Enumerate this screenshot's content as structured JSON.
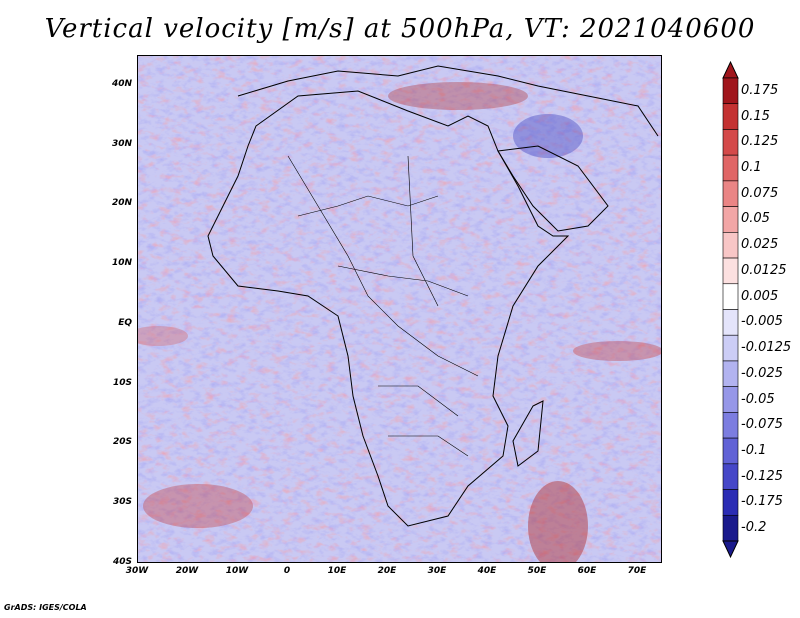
{
  "title": "Vertical velocity [m/s] at 500hPa, VT: 2021040600",
  "credit": "GrADS: IGES/COLA",
  "map": {
    "lon_range": [
      -30,
      75
    ],
    "lat_range": [
      -40,
      45
    ],
    "lat_labels": [
      "40N",
      "30N",
      "20N",
      "10N",
      "EQ",
      "10S",
      "20S",
      "30S",
      "40S"
    ],
    "lat_values": [
      40,
      30,
      20,
      10,
      0,
      -10,
      -20,
      -30,
      -40
    ],
    "lon_labels": [
      "30W",
      "20W",
      "10W",
      "0",
      "10E",
      "20E",
      "30E",
      "40E",
      "50E",
      "60E",
      "70E"
    ],
    "lon_values": [
      -30,
      -20,
      -10,
      0,
      10,
      20,
      30,
      40,
      50,
      60,
      70
    ]
  },
  "colorbar": {
    "labels": [
      "0.175",
      "0.15",
      "0.125",
      "0.1",
      "0.075",
      "0.05",
      "0.025",
      "0.0125",
      "0.005",
      "-0.005",
      "-0.0125",
      "-0.025",
      "-0.05",
      "-0.075",
      "-0.1",
      "-0.125",
      "-0.175",
      "-0.2"
    ],
    "colors": [
      "#a0161c",
      "#c43232",
      "#d44a4a",
      "#e06666",
      "#ea8585",
      "#f2a6a6",
      "#f8c6c6",
      "#fce0e0",
      "#ffffff",
      "#e4e4fb",
      "#cccdf6",
      "#b2b3f0",
      "#9697e8",
      "#7c7de0",
      "#6162d6",
      "#4647c8",
      "#2b2cb4",
      "#1a1a8c"
    ]
  }
}
